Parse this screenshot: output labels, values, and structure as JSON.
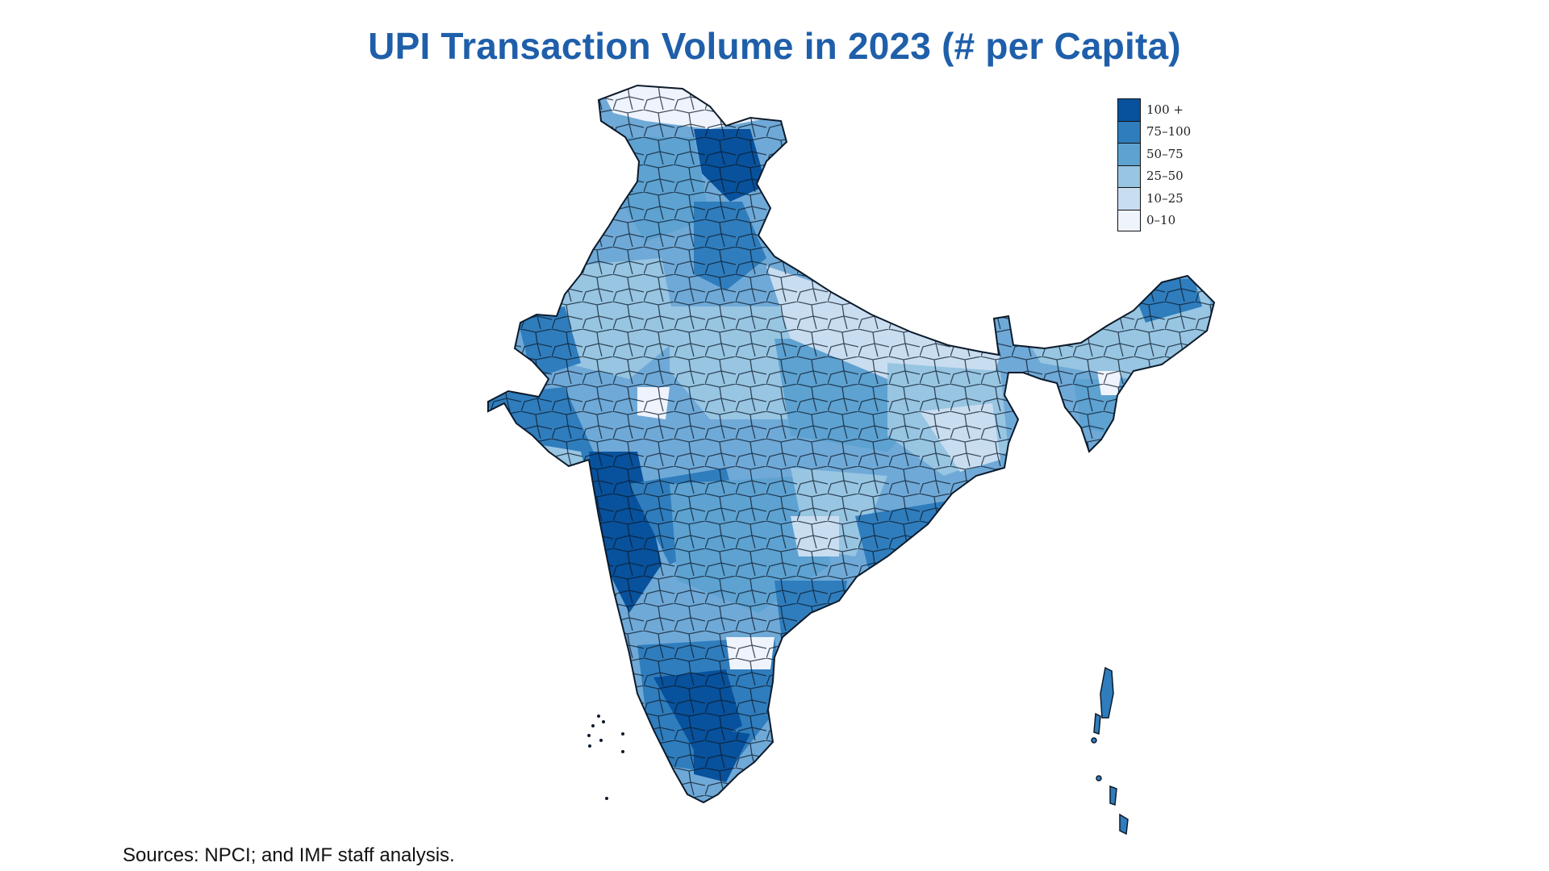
{
  "title": "UPI Transaction Volume in 2023 (# per Capita)",
  "source": "Sources: NPCI; and IMF staff analysis.",
  "map": {
    "region": "India",
    "unit": "districts"
  },
  "legend": {
    "items": [
      {
        "label": "100 +",
        "color": "#08519c"
      },
      {
        "label": "75–100",
        "color": "#2f7dbd"
      },
      {
        "label": "50–75",
        "color": "#5da2d1"
      },
      {
        "label": "25–50",
        "color": "#97c5e2"
      },
      {
        "label": "10–25",
        "color": "#c9ddf0"
      },
      {
        "label": "0–10",
        "color": "#eef3fc"
      }
    ]
  }
}
